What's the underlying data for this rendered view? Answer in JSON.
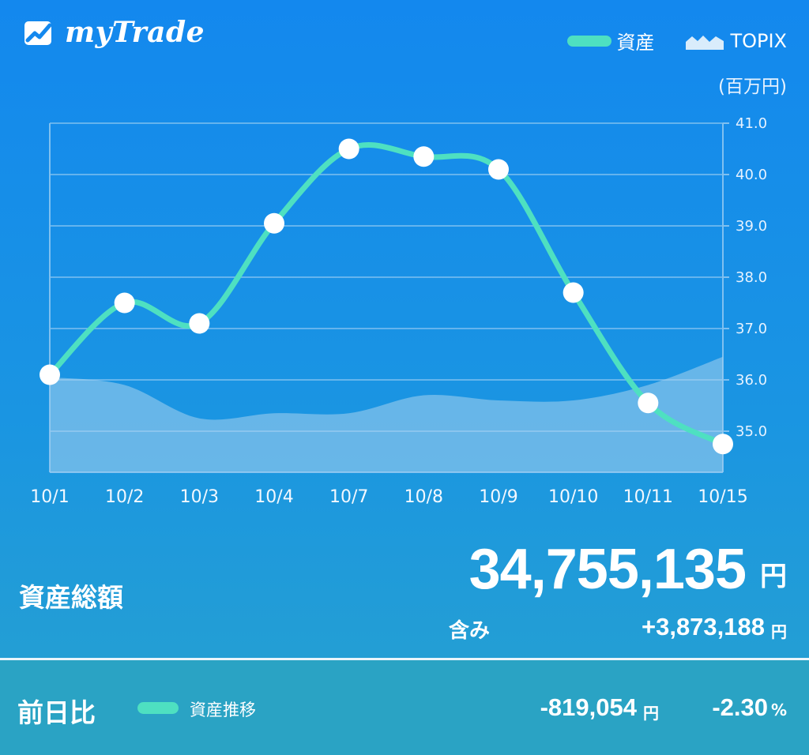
{
  "app": {
    "brand": "myTrade"
  },
  "legend": {
    "assets_label": "資産",
    "topix_label": "TOPIX"
  },
  "unit_label": "(百万円)",
  "colors": {
    "assets_line": "#4ee0c1",
    "topix_area": "#a8d2ee",
    "grid": "#7fc0f0",
    "marker": "#ffffff"
  },
  "icons": {
    "logo": "trend-chart-logo-icon",
    "legend_assets": "line-swatch-icon",
    "legend_topix": "mountain-area-icon"
  },
  "chart_data": {
    "type": "line",
    "categories": [
      "10/1",
      "10/2",
      "10/3",
      "10/4",
      "10/7",
      "10/8",
      "10/9",
      "10/10",
      "10/11",
      "10/15"
    ],
    "series": [
      {
        "name": "資産",
        "values": [
          36.1,
          37.5,
          37.1,
          39.05,
          40.5,
          40.35,
          40.1,
          37.7,
          35.55,
          34.75
        ]
      },
      {
        "name": "TOPIX",
        "type": "area",
        "values": [
          36.05,
          35.9,
          35.25,
          35.35,
          35.35,
          35.7,
          35.6,
          35.6,
          35.9,
          36.45
        ]
      }
    ],
    "yticks": [
      "41.0",
      "40.0",
      "39.0",
      "38.0",
      "37.0",
      "36.0",
      "35.0"
    ],
    "ylim": [
      34.2,
      41.0
    ],
    "y_axis_side": "right",
    "grid": true,
    "legend_position": "top-right"
  },
  "summary": {
    "total_label": "資産総額",
    "total_value": "34,755,135",
    "total_unit": "円",
    "gain_label": "含み",
    "gain_value": "+3,873,188",
    "gain_unit": "円"
  },
  "daily": {
    "label": "前日比",
    "trend_label": "資産推移",
    "change_value": "-819,054",
    "change_unit": "円",
    "percent_value": "-2.30",
    "percent_unit": "%"
  }
}
